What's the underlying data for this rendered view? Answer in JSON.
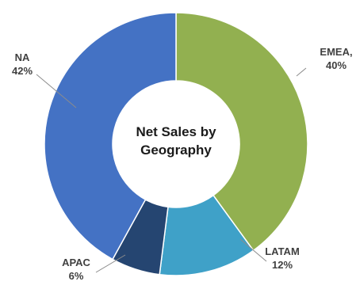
{
  "chart_data": {
    "type": "pie",
    "variant": "donut",
    "center_title_lines": [
      "Net Sales by",
      "Geography"
    ],
    "slices": [
      {
        "label": "EMEA",
        "value": 40,
        "display": [
          "EMEA,",
          "40%"
        ],
        "color": "#92B050"
      },
      {
        "label": "LATAM",
        "value": 12,
        "display": [
          "LATAM",
          "12%"
        ],
        "color": "#3FA1C8"
      },
      {
        "label": "APAC",
        "value": 6,
        "display": [
          "APAC",
          "6%"
        ],
        "color": "#254571"
      },
      {
        "label": "NA",
        "value": 42,
        "display": [
          "NA",
          "42%"
        ],
        "color": "#4472C4"
      }
    ],
    "start_angle_deg": 0,
    "direction": "clockwise",
    "legend": "none"
  }
}
